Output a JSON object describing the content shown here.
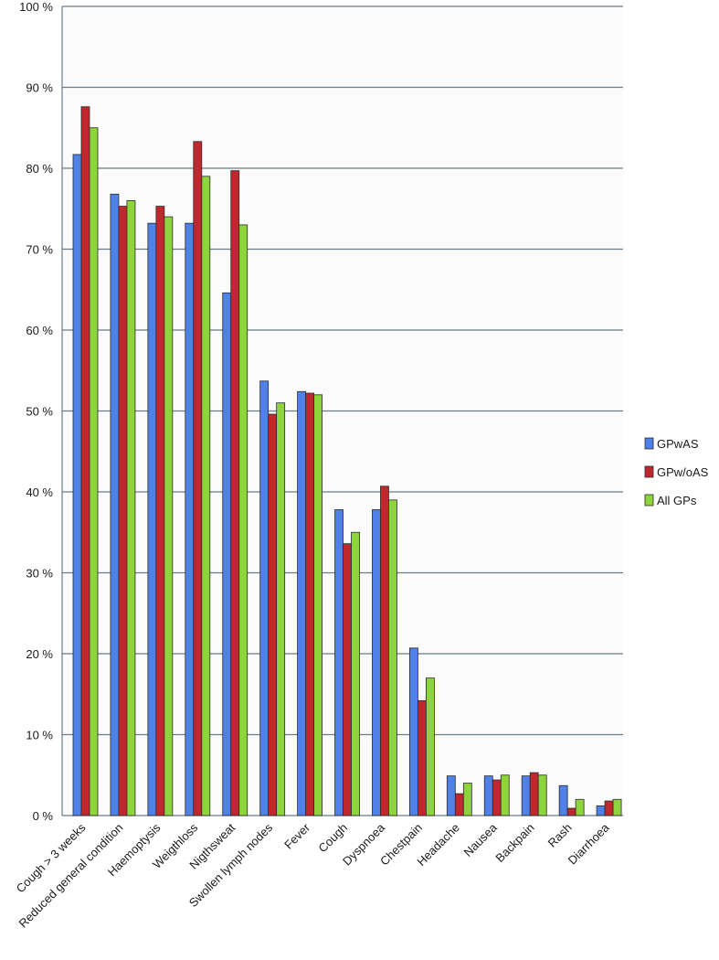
{
  "chart_data": {
    "type": "bar",
    "title": "",
    "xlabel": "",
    "ylabel": "",
    "ylim": [
      0,
      100
    ],
    "grid": true,
    "legend_position": "right",
    "yticks": [
      "0 %",
      "10 %",
      "20 %",
      "30 %",
      "40 %",
      "50 %",
      "60 %",
      "70 %",
      "80 %",
      "90 %",
      "100 %"
    ],
    "categories": [
      "Cough > 3 weeks",
      "Reduced general condition",
      "Haemoptysis",
      "Weigthloss",
      "Nigthsweat",
      "Swollen lymph nodes",
      "Fever",
      "Cough",
      "Dyspnoea",
      "Chestpain",
      "Headache",
      "Nausea",
      "Backpain",
      "Rash",
      "Diarrhoea"
    ],
    "series": [
      {
        "name": "GPwAS",
        "color": "#4f81e6",
        "values": [
          81.7,
          76.8,
          73.2,
          73.2,
          64.6,
          53.7,
          52.4,
          37.8,
          37.8,
          20.7,
          4.9,
          4.9,
          4.9,
          3.7,
          1.2
        ]
      },
      {
        "name": "GPw/oAS",
        "color": "#c0282d",
        "values": [
          87.6,
          75.3,
          75.3,
          83.3,
          79.7,
          49.6,
          52.2,
          33.6,
          40.7,
          14.2,
          2.7,
          4.4,
          5.3,
          0.9,
          1.8
        ]
      },
      {
        "name": "All GPs",
        "color": "#8ed43c",
        "values": [
          85.0,
          76.0,
          74.0,
          79.0,
          73.0,
          51.0,
          52.0,
          35.0,
          39.0,
          17.0,
          4.0,
          5.0,
          5.0,
          2.0,
          2.0
        ]
      }
    ]
  }
}
